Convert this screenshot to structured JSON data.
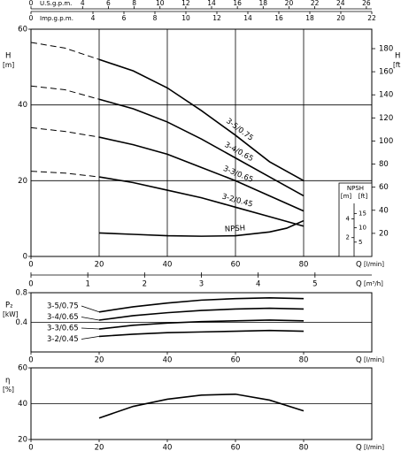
{
  "chart_data": [
    {
      "type": "line",
      "grid": "both",
      "x": [
        0,
        10,
        20,
        30,
        40,
        50,
        60,
        70,
        80
      ],
      "xlim": [
        0,
        100
      ],
      "xticks": [
        0,
        20,
        40,
        60,
        80
      ],
      "x_label": "Q",
      "x_unit": "[l/min]",
      "ylim": [
        0,
        60
      ],
      "yticks": [
        0,
        20,
        40,
        60
      ],
      "y_label": "H",
      "y_unit": "[m]",
      "y2lim": [
        0,
        196.85
      ],
      "y2ticks": [
        20,
        40,
        60,
        80,
        100,
        120,
        140,
        160,
        180
      ],
      "y2_label": "H",
      "y2_unit": "[ft]",
      "series_labels": "on-curve",
      "color": "#000000",
      "series": [
        {
          "name": "3-5/0.75",
          "values": [
            null,
            null,
            52,
            49,
            44.5,
            38.5,
            32,
            25,
            20
          ],
          "extrapolated": [
            56.5,
            55,
            null,
            null,
            null,
            null,
            null,
            null,
            null
          ]
        },
        {
          "name": "3-4/0.65",
          "values": [
            null,
            null,
            41.5,
            39,
            35.5,
            31,
            26,
            21,
            16
          ],
          "extrapolated": [
            45,
            44,
            null,
            null,
            null,
            null,
            null,
            null,
            null
          ]
        },
        {
          "name": "3-3/0.65",
          "values": [
            null,
            null,
            31.5,
            29.5,
            27,
            23.5,
            20,
            16,
            12
          ],
          "extrapolated": [
            34,
            33,
            null,
            null,
            null,
            null,
            null,
            null,
            null
          ]
        },
        {
          "name": "3-2/0.45",
          "values": [
            null,
            null,
            21,
            19.5,
            17.5,
            15.5,
            13,
            10.5,
            8
          ],
          "extrapolated": [
            22.5,
            22,
            null,
            null,
            null,
            null,
            null,
            null,
            null
          ]
        },
        {
          "name": "NPSH",
          "axis": "npsh",
          "x": [
            20,
            30,
            40,
            50,
            60,
            70,
            75,
            80
          ],
          "values": [
            2.5,
            2.35,
            2.2,
            2.15,
            2.2,
            2.6,
            3.0,
            3.8
          ]
        }
      ],
      "npsh_inset": {
        "title": "NPSH",
        "y_unit": "[m]",
        "y2_unit": "[ft]",
        "ylim": [
          0,
          7.8
        ],
        "yticks": [
          2,
          4
        ],
        "y2lim": [
          0,
          25.6
        ],
        "y2ticks": [
          5,
          10,
          15
        ]
      },
      "top_axes": [
        {
          "label": "U.S.g.p.m.",
          "xlim": [
            0,
            26.42
          ],
          "xticks": [
            0,
            4,
            6,
            8,
            10,
            12,
            14,
            16,
            18,
            20,
            22,
            24,
            26
          ]
        },
        {
          "label": "Imp.g.p.m.",
          "xlim": [
            0,
            22
          ],
          "xticks": [
            0,
            4,
            6,
            8,
            10,
            12,
            14,
            16,
            18,
            20,
            22
          ]
        }
      ],
      "bottom_axes": [
        {
          "label": "Q",
          "unit": "[m³/h]",
          "xlim": [
            0,
            6
          ],
          "xticks": [
            0,
            1,
            2,
            3,
            4,
            5
          ]
        }
      ]
    },
    {
      "type": "line",
      "grid": "y",
      "x": [
        20,
        30,
        40,
        50,
        60,
        70,
        80
      ],
      "xlim": [
        0,
        100
      ],
      "xticks": [
        0,
        20,
        40,
        60,
        80
      ],
      "x_label": "Q",
      "x_unit": "[l/min]",
      "ylim": [
        0,
        0.8
      ],
      "yticks": [
        0.4,
        0.8
      ],
      "y_label": "P₂",
      "y_unit": "[kW]",
      "series_labels": "left",
      "color": "#000000",
      "series": [
        {
          "name": "3-5/0.75",
          "values": [
            0.54,
            0.61,
            0.66,
            0.7,
            0.72,
            0.73,
            0.72
          ]
        },
        {
          "name": "3-4/0.65",
          "values": [
            0.43,
            0.49,
            0.53,
            0.56,
            0.58,
            0.59,
            0.58
          ]
        },
        {
          "name": "3-3/0.65",
          "values": [
            0.31,
            0.36,
            0.39,
            0.41,
            0.42,
            0.43,
            0.42
          ]
        },
        {
          "name": "3-2/0.45",
          "values": [
            0.21,
            0.24,
            0.26,
            0.27,
            0.28,
            0.29,
            0.28
          ]
        }
      ]
    },
    {
      "type": "line",
      "grid": "y",
      "x": [
        20,
        30,
        40,
        50,
        60,
        70,
        80
      ],
      "xlim": [
        0,
        100
      ],
      "xticks": [
        0,
        20,
        40,
        60,
        80
      ],
      "x_label": "Q",
      "x_unit": "[l/min]",
      "ylim": [
        20,
        60
      ],
      "yticks": [
        20,
        40,
        60
      ],
      "y_label": "η",
      "y_unit": "[%]",
      "color": "#000000",
      "series": [
        {
          "values": [
            32,
            38.5,
            42.5,
            44.8,
            45.3,
            42,
            36
          ]
        }
      ]
    }
  ]
}
